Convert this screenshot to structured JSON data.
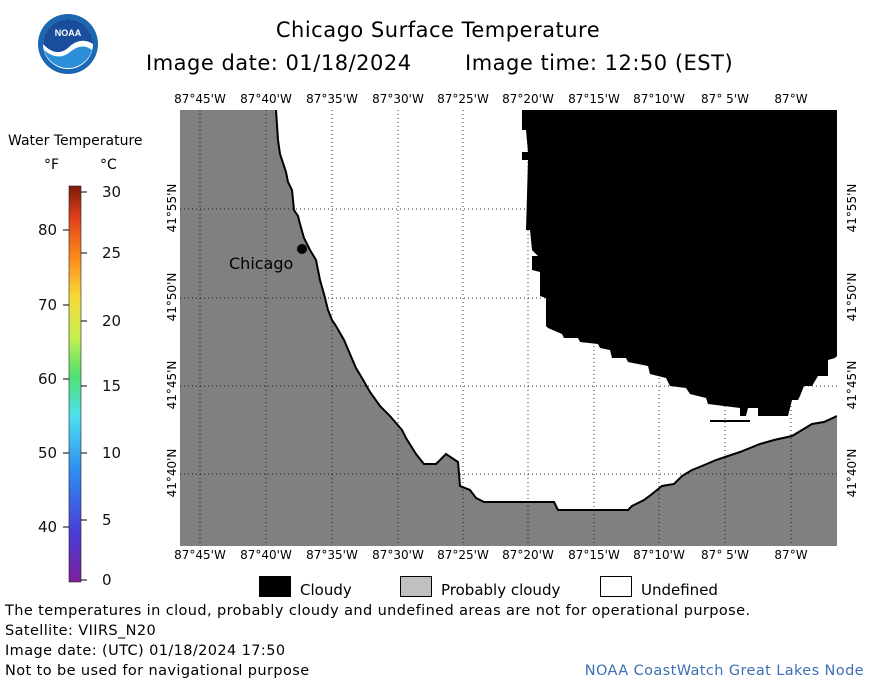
{
  "header": {
    "title": "Chicago Surface Temperature",
    "image_date": "Image date: 01/18/2024",
    "image_time": "Image time: 12:50 (EST)"
  },
  "logo": {
    "text": "NOAA"
  },
  "legend": {
    "title": "Water Temperature",
    "unit_f": "°F",
    "unit_c": "°C",
    "f_ticks": [
      "80",
      "70",
      "60",
      "50",
      "40"
    ],
    "c_ticks": [
      "30",
      "25",
      "20",
      "15",
      "10",
      "5",
      "0"
    ]
  },
  "map": {
    "lon_labels": [
      "87°45'W",
      "87°40'W",
      "87°35'W",
      "87°30'W",
      "87°25'W",
      "87°20'W",
      "87°15'W",
      "87°10'W",
      "87° 5'W",
      "87°W"
    ],
    "lat_labels": [
      "41°55'N",
      "41°50'N",
      "41°45'N",
      "41°40'N"
    ],
    "city_label": "Chicago",
    "colors": {
      "land": "#808080",
      "cloudy": "#000000",
      "probably_cloudy": "#c0c0c0",
      "undefined": "#ffffff"
    }
  },
  "mask_legend": {
    "cloudy": "Cloudy",
    "probably_cloudy": "Probably cloudy",
    "undefined": "Undefined"
  },
  "footer": {
    "note": "The temperatures in cloud, probably cloudy and undefined areas are not for operational purpose.",
    "satellite": "Satellite: VIIRS_N20",
    "utc_date": "Image date: (UTC) 01/18/2024  17:50",
    "nav_warning": "Not to be used for navigational purpose",
    "credit": "NOAA CoastWatch Great Lakes Node"
  }
}
